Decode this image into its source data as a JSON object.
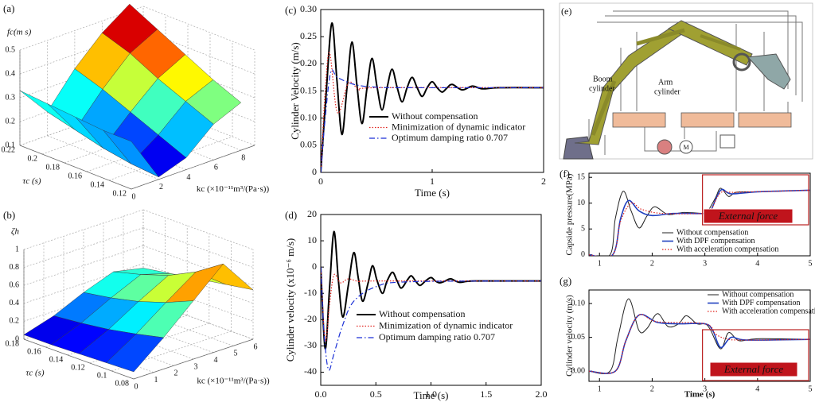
{
  "chart_data": [
    {
      "type": "surface",
      "label": "(a)",
      "zlabel": "fc(m s)",
      "ylabel": "τc (s)",
      "xlabel": "kc (×10⁻¹¹m³/(Pa·s))",
      "xlim": [
        0,
        9
      ],
      "ylim": [
        0.12,
        0.22
      ],
      "zlim": [
        0.1,
        0.5
      ],
      "xticks": [
        0,
        2,
        4,
        6,
        8
      ],
      "yticks": [
        0.12,
        0.14,
        0.16,
        0.18,
        0.2,
        0.22
      ],
      "zticks": [
        0.1,
        0.2,
        0.3,
        0.4,
        0.5
      ],
      "x": [
        0,
        2,
        4,
        6,
        8
      ],
      "y": [
        0.12,
        0.145,
        0.17,
        0.195,
        0.22
      ],
      "z": [
        [
          0.3,
          0.11,
          0.15,
          0.25,
          0.3
        ],
        [
          0.3,
          0.12,
          0.2,
          0.3,
          0.35
        ],
        [
          0.31,
          0.14,
          0.25,
          0.35,
          0.41
        ],
        [
          0.32,
          0.17,
          0.3,
          0.41,
          0.47
        ],
        [
          0.33,
          0.2,
          0.34,
          0.45,
          0.53
        ]
      ]
    },
    {
      "type": "surface",
      "label": "(b)",
      "zlabel": "ζh",
      "ylabel": "τc (s)",
      "xlabel": "kc (×10⁻¹¹m³/(Pa·s))",
      "xlim": [
        0,
        6
      ],
      "ylim": [
        0.08,
        0.18
      ],
      "zlim": [
        0,
        1
      ],
      "xticks": [
        0,
        1,
        2,
        3,
        4,
        5,
        6
      ],
      "yticks": [
        0.08,
        0.1,
        0.12,
        0.14,
        0.16,
        0.18
      ],
      "zticks": [
        0,
        0.2,
        0.4,
        0.6,
        0.8,
        1
      ],
      "x": [
        0,
        1.5,
        3,
        4.5,
        6
      ],
      "y": [
        0.08,
        0.105,
        0.13,
        0.155,
        0.18
      ],
      "z": [
        [
          0.08,
          0.35,
          0.65,
          0.95,
          0.55
        ],
        [
          0.07,
          0.28,
          0.52,
          0.75,
          0.5
        ],
        [
          0.06,
          0.22,
          0.42,
          0.6,
          0.45
        ],
        [
          0.05,
          0.18,
          0.35,
          0.5,
          0.4
        ],
        [
          0.05,
          0.15,
          0.3,
          0.42,
          0.35
        ]
      ]
    },
    {
      "type": "line",
      "label": "(c)",
      "xlabel": "Time (s)",
      "ylabel": "Cylinder Velocity (m/s)",
      "xlim": [
        0,
        2
      ],
      "ylim": [
        0,
        0.3
      ],
      "xticks": [
        0,
        1,
        2
      ],
      "yticks": [
        0,
        {
          "value": 0.05,
          "label": "0.05"
        },
        {
          "value": 0.1,
          "label": "0.10"
        },
        {
          "value": 0.15,
          "label": "0.15"
        },
        {
          "value": 0.2,
          "label": "0.20"
        },
        {
          "value": 0.25,
          "label": "0.25"
        },
        {
          "value": 0.3,
          "label": "0.30"
        }
      ],
      "series": [
        {
          "name": "Without compensation",
          "color": "#000000",
          "line_style": "solid",
          "x": [
            0,
            0.05,
            0.1,
            0.145,
            0.19,
            0.235,
            0.28,
            0.325,
            0.37,
            0.415,
            0.46,
            0.505,
            0.55,
            0.595,
            0.64,
            0.685,
            0.73,
            0.775,
            0.82,
            0.865,
            0.91,
            0.955,
            1.0,
            1.045,
            1.09,
            1.135,
            1.18,
            1.27,
            1.36,
            1.45,
            1.6,
            2.0
          ],
          "values": [
            0,
            0.15,
            0.275,
            0.17,
            0.07,
            0.155,
            0.24,
            0.16,
            0.09,
            0.155,
            0.21,
            0.158,
            0.115,
            0.156,
            0.19,
            0.157,
            0.13,
            0.156,
            0.175,
            0.156,
            0.14,
            0.156,
            0.167,
            0.156,
            0.148,
            0.156,
            0.162,
            0.152,
            0.159,
            0.154,
            0.156,
            0.156
          ]
        },
        {
          "name": "Minimization of dynamic indicator",
          "color": "#e0201b",
          "line_style": "dotted",
          "x": [
            0,
            0.04,
            0.08,
            0.15,
            0.25,
            0.35,
            0.5,
            2.0
          ],
          "values": [
            0,
            0.15,
            0.22,
            0.11,
            0.165,
            0.152,
            0.156,
            0.156
          ]
        },
        {
          "name": "Optimum damping ratio 0.707",
          "color": "#1a2fd6",
          "line_style": "dashdot",
          "x": [
            0,
            0.04,
            0.09,
            0.15,
            0.3,
            0.5,
            0.8,
            2.0
          ],
          "values": [
            0,
            0.1,
            0.185,
            0.175,
            0.162,
            0.157,
            0.156,
            0.156
          ]
        }
      ]
    },
    {
      "type": "line",
      "label": "(d)",
      "xlabel": "Time (s)",
      "ylabel": "Cylinder velocity (x10⁻⁶ m/s)",
      "xlim": [
        0,
        2
      ],
      "ylim": [
        -45,
        20
      ],
      "xticks": [
        {
          "value": 0,
          "label": "0.0"
        },
        0.5,
        {
          "value": 1,
          "label": "1.0"
        },
        1.5,
        {
          "value": 2,
          "label": "2.0"
        }
      ],
      "yticks": [
        -40,
        -30,
        -20,
        -10,
        0,
        10,
        20
      ],
      "series": [
        {
          "name": "Without compensation",
          "color": "#000000",
          "line_style": "solid",
          "x": [
            0,
            0.04,
            0.08,
            0.12,
            0.16,
            0.2,
            0.25,
            0.3,
            0.34,
            0.38,
            0.43,
            0.47,
            0.51,
            0.56,
            0.6,
            0.65,
            0.69,
            0.73,
            0.78,
            0.82,
            0.86,
            0.9,
            0.95,
            1.0,
            1.04,
            1.08,
            1.13,
            1.18,
            1.26,
            1.4,
            2.0
          ],
          "values": [
            0,
            -31,
            -8,
            13.5,
            -5,
            -19,
            -7,
            5.5,
            -4,
            -13,
            -6,
            0.5,
            -5,
            -10,
            -5.5,
            -2,
            -5,
            -8,
            -5.3,
            -3.3,
            -5.3,
            -7,
            -5.3,
            -4,
            -5.3,
            -6,
            -5.3,
            -4.5,
            -5.8,
            -5.3,
            -5.3
          ]
        },
        {
          "name": "Minimization of dynamic indicator",
          "color": "#e0201b",
          "line_style": "dotted",
          "x": [
            0,
            0.04,
            0.08,
            0.12,
            0.18,
            0.25,
            0.35,
            0.5,
            2.0
          ],
          "values": [
            0,
            -28,
            -14,
            -3,
            -6,
            -4.5,
            -5.5,
            -5.3,
            -5.3
          ]
        },
        {
          "name": "Optimum damping ratio 0.707",
          "color": "#1a2fd6",
          "line_style": "dashdot",
          "x": [
            0,
            0.03,
            0.07,
            0.12,
            0.2,
            0.3,
            0.5,
            0.8,
            2.0
          ],
          "values": [
            0,
            -25,
            -39,
            -33,
            -22,
            -13,
            -7.5,
            -5.6,
            -5.3
          ]
        }
      ]
    },
    {
      "type": "line",
      "label": "(f)",
      "ylabel": "Capside pressure(MPa)",
      "annotation": "External force",
      "xlim": [
        0.8,
        5
      ],
      "ylim": [
        -0.2,
        15.8
      ],
      "xticks": [
        1,
        2,
        3,
        4,
        5
      ],
      "yticks": [
        0,
        5,
        10,
        15
      ],
      "series": [
        {
          "name": "Without compensation",
          "color": "#222222",
          "line_style": "solid",
          "x": [
            0.8,
            1.2,
            1.3,
            1.45,
            1.6,
            1.75,
            1.9,
            2.05,
            2.3,
            2.6,
            3.0,
            3.05,
            3.2,
            3.3,
            3.45,
            3.6,
            4,
            5
          ],
          "values": [
            0,
            0,
            7,
            12.3,
            8.5,
            5.2,
            7.5,
            9.3,
            7.8,
            8.2,
            8,
            8.3,
            11,
            12.9,
            11.3,
            12.1,
            12.2,
            12.5
          ]
        },
        {
          "name": "With DPF compensation",
          "color": "#1f3fbf",
          "line_style": "thick",
          "x": [
            0.8,
            1.25,
            1.4,
            1.55,
            1.75,
            2,
            2.4,
            3.0,
            3.1,
            3.3,
            3.5,
            4,
            5
          ],
          "values": [
            0,
            0,
            7,
            10.5,
            8.5,
            7.6,
            8,
            8,
            8.3,
            12.5,
            11.8,
            12.2,
            12.5
          ]
        },
        {
          "name": "With acceleration compensation",
          "color": "#e0201b",
          "line_style": "dotted",
          "x": [
            0.8,
            1.25,
            1.4,
            1.6,
            1.8,
            2.2,
            3.0,
            3.1,
            3.3,
            3.6,
            5
          ],
          "values": [
            0,
            0,
            6.5,
            10,
            8.8,
            8,
            8,
            8.3,
            12,
            12.1,
            12.5
          ]
        }
      ]
    },
    {
      "type": "line",
      "label": "(g)",
      "xlabel": "Time (s)",
      "ylabel": "Cylinder velocity (m/s)",
      "annotation": "External force",
      "xlim": [
        0.8,
        5
      ],
      "ylim": [
        -0.015,
        0.12
      ],
      "xticks": [
        1,
        2,
        3,
        4,
        5
      ],
      "yticks": [
        {
          "value": 0,
          "label": "0.00"
        },
        {
          "value": 0.05,
          "label": "0.05"
        },
        {
          "value": 0.1,
          "label": "0.10"
        }
      ],
      "series": [
        {
          "name": "Without compensation",
          "color": "#222222",
          "line_style": "solid",
          "x": [
            0.8,
            1.2,
            1.35,
            1.55,
            1.75,
            1.9,
            2.1,
            2.3,
            2.5,
            2.65,
            2.85,
            3.0,
            3.1,
            3.3,
            3.45,
            3.65,
            4,
            5
          ],
          "values": [
            0,
            0,
            0.05,
            0.107,
            0.06,
            0.063,
            0.085,
            0.066,
            0.07,
            0.082,
            0.07,
            0.07,
            0.062,
            0.033,
            0.057,
            0.045,
            0.048,
            0.047
          ]
        },
        {
          "name": "With DPF compensation",
          "color": "#1f3fbf",
          "line_style": "thick",
          "x": [
            0.8,
            1.3,
            1.5,
            1.75,
            2.1,
            2.5,
            3.0,
            3.15,
            3.3,
            3.5,
            3.8,
            5
          ],
          "values": [
            0,
            0,
            0.045,
            0.083,
            0.072,
            0.07,
            0.07,
            0.06,
            0.035,
            0.05,
            0.046,
            0.047
          ]
        },
        {
          "name": "With acceleration compensation",
          "color": "#e0201b",
          "line_style": "dotted",
          "x": [
            0.8,
            1.3,
            1.5,
            1.75,
            2.1,
            3.0,
            3.2,
            3.4,
            3.7,
            5
          ],
          "values": [
            0,
            0,
            0.045,
            0.083,
            0.073,
            0.07,
            0.055,
            0.048,
            0.046,
            0.047
          ]
        }
      ]
    }
  ],
  "diagram": {
    "label": "(e)",
    "boom_label": [
      "Boom",
      "cylinder"
    ],
    "arm_label": [
      "Arm",
      "cylinder"
    ],
    "motor_label": "M"
  }
}
